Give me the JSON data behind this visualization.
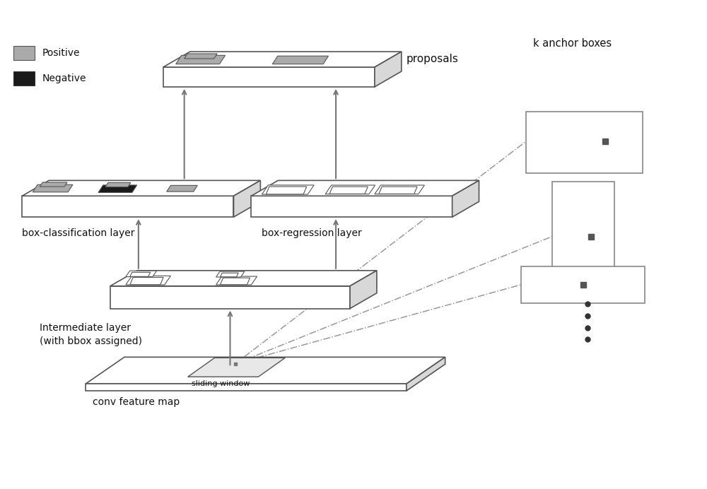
{
  "bg_color": "#ffffff",
  "layer_edge_color": "#555555",
  "positive_color": "#aaaaaa",
  "negative_color": "#1a1a1a",
  "anchor_box_edge": "#888888",
  "anchor_dot_color": "#555555",
  "arrow_color": "#777777",
  "dash_color": "#999999",
  "text_color": "#111111",
  "side_face_color": "#d8d8d8",
  "labels": {
    "proposals": "proposals",
    "box_cls": "box-classification layer",
    "box_reg": "box-regression layer",
    "intermediate": "Intermediate layer\n(with bbox assigned)",
    "conv": "conv feature map",
    "sliding": "sliding window",
    "k_anchor": "k anchor boxes",
    "positive": "Positive",
    "negative": "Negative"
  }
}
